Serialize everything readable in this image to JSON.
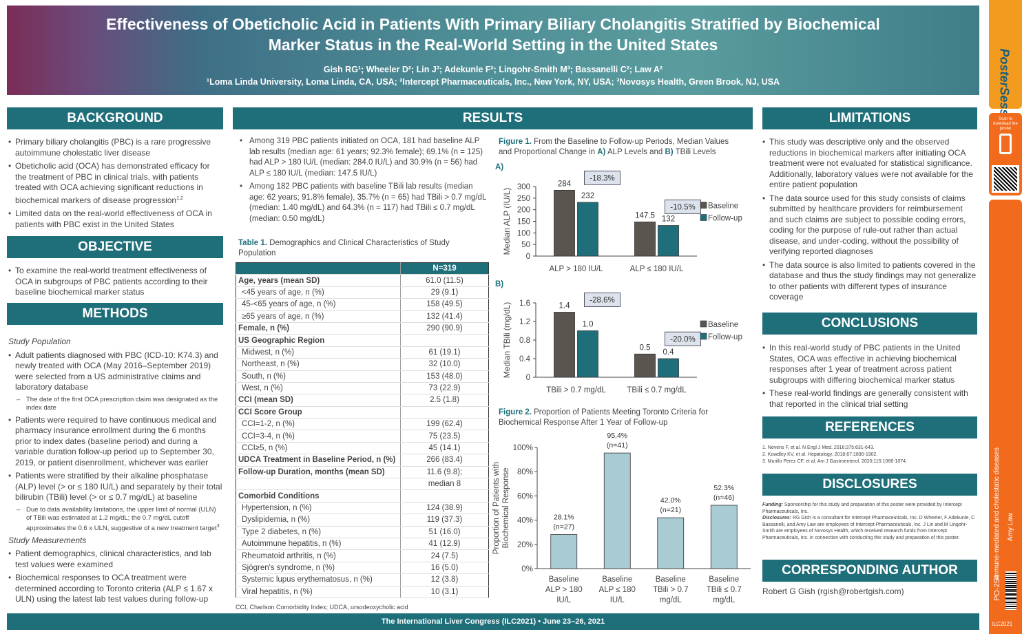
{
  "header": {
    "title_line1": "Effectiveness of Obeticholic Acid in Patients With Primary Biliary Cholangitis Stratified by Biochemical",
    "title_line2": "Marker Status in the Real-World Setting in the United States",
    "authors": "Gish RG¹; Wheeler D²; Lin J³; Adekunle F²; Lingohr-Smith M³; Bassanelli C²; Law A²",
    "affiliations": "¹Loma Linda University, Loma Linda, CA, USA; ²Intercept Pharmaceuticals, Inc., New York, NY, USA; ³Novosys Health, Green Brook, NJ, USA"
  },
  "sidebar": {
    "logo": "PosterSessionOnline",
    "scan_text": "Scan to download the poster",
    "topic": "Immune-mediated and cholestatic diseases",
    "author": "Amy Law",
    "poster_id": "PO-254",
    "congress": "ILC2021"
  },
  "background": {
    "title": "BACKGROUND",
    "items": [
      "Primary biliary cholangitis (PBC) is a rare progressive autoimmune cholestatic liver disease",
      "Obeticholic acid (OCA) has demonstrated efficacy for the treatment of PBC in clinical trials, with patients treated with OCA achieving significant reductions in biochemical markers of disease progression",
      "Limited data on the real-world effectiveness of OCA in patients with PBC exist in the United States"
    ],
    "ref_sup": "1,2"
  },
  "objective": {
    "title": "OBJECTIVE",
    "items": [
      "To examine the real-world treatment effectiveness of OCA in subgroups of PBC patients according to their baseline biochemical marker status"
    ]
  },
  "methods": {
    "title": "METHODS",
    "sub1": "Study Population",
    "p1": "Adult patients diagnosed with PBC (ICD-10: K74.3) and newly treated with OCA (May 2016–September 2019) were selected from a US administrative claims and laboratory database",
    "p1a": "The date of the first OCA prescription claim was designated as the index date",
    "p2": "Patients were required to have continuous medical and pharmacy insurance enrollment during the 6 months prior to index dates (baseline period) and during a variable duration follow-up period up to September 30, 2019, or patient disenrollment, whichever was earlier",
    "p3": "Patients were stratified by their alkaline phosphatase (ALP) level (> or ≤ 180 IU/L) and separately by their total bilirubin (TBili) level (> or ≤ 0.7 mg/dL) at baseline",
    "p3a": "Due to data availability limitations, the upper limit of normal (ULN) of TBili was estimated at 1.2 mg/dL; the 0.7 mg/dL cutoff approximates the 0.6 x ULN, suggestive of a new treatment target",
    "p3a_sup": "3",
    "sub2": "Study Measurements",
    "p4": "Patient demographics, clinical characteristics, and lab test values were examined",
    "p5": "Biochemical responses to OCA treatment were determined according to Toronto criteria (ALP ≤ 1.67 x ULN) using the latest lab test values during follow-up"
  },
  "results": {
    "title": "RESULTS",
    "items": [
      "Among 319 PBC patients initiated on OCA, 181 had baseline ALP lab results (median age: 61 years; 92.3% female); 69.1% (n = 125) had ALP > 180 IU/L (median: 284.0 IU/L) and 30.9% (n = 56) had ALP ≤ 180 IU/L (median: 147.5 IU/L)",
      "Among 182 PBC patients with baseline TBili lab results (median age: 62 years; 91.8% female), 35.7% (n = 65) had TBili > 0.7 mg/dL (median: 1.40 mg/dL) and 64.3% (n = 117) had TBili ≤ 0.7 mg/dL (median: 0.50 mg/dL)"
    ]
  },
  "table1": {
    "caption_label": "Table 1.",
    "caption": "Demographics and Clinical Characteristics of Study Population",
    "header": "N=319",
    "rows": [
      [
        "Age, years (mean SD)",
        "61.0 (11.5)",
        "bold"
      ],
      [
        "<45 years of age, n (%)",
        "29 (9.1)",
        "ind"
      ],
      [
        "45-<65 years of age, n (%)",
        "158 (49.5)",
        "ind"
      ],
      [
        "≥65 years of age, n (%)",
        "132 (41.4)",
        "ind"
      ],
      [
        "Female, n (%)",
        "290 (90.9)",
        "bold"
      ],
      [
        "US Geographic Region",
        "",
        "bold"
      ],
      [
        "Midwest, n (%)",
        "61 (19.1)",
        "ind"
      ],
      [
        "Northeast, n (%)",
        "32 (10.0)",
        "ind"
      ],
      [
        "South, n (%)",
        "153 (48.0)",
        "ind"
      ],
      [
        "West, n (%)",
        "73 (22.9)",
        "ind"
      ],
      [
        "CCI (mean SD)",
        "2.5 (1.8)",
        "bold"
      ],
      [
        "CCI Score Group",
        "",
        "bold"
      ],
      [
        "CCI=1-2, n (%)",
        "199 (62.4)",
        "ind"
      ],
      [
        "CCI=3-4, n (%)",
        "75 (23.5)",
        "ind"
      ],
      [
        "CCI≥5, n (%)",
        "45 (14.1)",
        "ind"
      ],
      [
        "UDCA Treatment in Baseline Period, n (%)",
        "266 (83.4)",
        "bold"
      ],
      [
        "Follow-up Duration, months (mean SD)",
        "11.6 (9.8);",
        "bold"
      ],
      [
        "",
        "median 8",
        "bold"
      ],
      [
        "Comorbid Conditions",
        "",
        "bold"
      ],
      [
        "Hypertension, n (%)",
        "124 (38.9)",
        "ind"
      ],
      [
        "Dyslipidemia, n (%)",
        "119 (37.3)",
        "ind"
      ],
      [
        "Type 2 diabetes, n (%)",
        "51 (16.0)",
        "ind"
      ],
      [
        "Autoimmune hepatitis, n (%)",
        "41 (12.9)",
        "ind"
      ],
      [
        "Rheumatoid arthritis, n (%)",
        "24 (7.5)",
        "ind"
      ],
      [
        "Sjögren's syndrome, n (%)",
        "16 (5.0)",
        "ind"
      ],
      [
        "Systemic lupus erythematosus, n (%)",
        "12 (3.8)",
        "ind"
      ],
      [
        "Viral hepatitis, n (%)",
        "10 (3.1)",
        "ind"
      ]
    ],
    "footnote": "CCI, Charlson Comorbidity Index; UDCA, ursodeoxycholic acid"
  },
  "figure1": {
    "caption_label": "Figure 1.",
    "caption_a": "From the Baseline to Follow-up Periods, Median Values and Proportional Change in",
    "caption_b": "A)",
    "caption_c": "ALP Levels and",
    "caption_d": "B)",
    "caption_e": "TBili Levels",
    "panel_a": "A)",
    "panel_b": "B)"
  },
  "figure2": {
    "caption_label": "Figure 2.",
    "caption": "Proportion of Patients Meeting Toronto Criteria for Biochemical Response After 1 Year of Follow-up"
  },
  "chart_data": [
    {
      "type": "bar",
      "ylabel": "Median ALP (IU/L)",
      "categories": [
        "ALP > 180 IU/L",
        "ALP ≤ 180 IU/L"
      ],
      "series": [
        {
          "name": "Baseline",
          "values": [
            284,
            147.5
          ],
          "labels": [
            "284",
            "147.5"
          ],
          "color": "#5b5550"
        },
        {
          "name": "Follow-up",
          "values": [
            232,
            132
          ],
          "labels": [
            "232",
            "132"
          ],
          "color": "#1f6f7a"
        }
      ],
      "changes": [
        "-18.3%",
        "-10.5%"
      ],
      "ylim": [
        0,
        300
      ],
      "yticks": [
        0,
        50,
        100,
        150,
        200,
        250,
        300
      ],
      "legend": "right"
    },
    {
      "type": "bar",
      "ylabel": "Median TBili (mg/dL)",
      "categories": [
        "TBili > 0.7 mg/dL",
        "TBili ≤ 0.7 mg/dL"
      ],
      "series": [
        {
          "name": "Baseline",
          "values": [
            1.4,
            0.5
          ],
          "labels": [
            "1.4",
            "0.5"
          ],
          "color": "#5b5550"
        },
        {
          "name": "Follow-up",
          "values": [
            1.0,
            0.4
          ],
          "labels": [
            "1.0",
            "0.4"
          ],
          "color": "#1f6f7a"
        }
      ],
      "changes": [
        "-28.6%",
        "-20.0%"
      ],
      "ylim": [
        0,
        1.6
      ],
      "yticks": [
        "0",
        "0.4",
        "0.8",
        "1.2",
        "1.6"
      ],
      "legend": "right"
    },
    {
      "type": "bar",
      "ylabel_line1": "Proportion of Patients with",
      "ylabel_line2": "Biochemical Response",
      "categories": [
        [
          "Baseline",
          "ALP > 180",
          "IU/L"
        ],
        [
          "Baseline",
          "ALP ≤ 180",
          "IU/L"
        ],
        [
          "Baseline",
          "TBili > 0.7",
          "mg/dL"
        ],
        [
          "Baseline",
          "TBili ≤ 0.7",
          "mg/dL"
        ]
      ],
      "values": [
        28.1,
        95.4,
        42.0,
        52.3
      ],
      "labels": [
        "28.1%",
        "95.4%",
        "42.0%",
        "52.3%"
      ],
      "ns": [
        "(n=27)",
        "(n=41)",
        "(n=21)",
        "(n=46)"
      ],
      "ylim": [
        0,
        100
      ],
      "yticks": [
        "0%",
        "20%",
        "40%",
        "60%",
        "80%",
        "100%"
      ],
      "color": "#a9cbd3"
    }
  ],
  "limitations": {
    "title": "LIMITATIONS",
    "items": [
      "This study was descriptive only and the observed reductions in biochemical markers after initiating OCA treatment were not evaluated for statistical significance. Additionally, laboratory values were not available for the entire patient population",
      "The data source used for this study consists of claims submitted by healthcare providers for reimbursement and such claims are subject to possible coding errors, coding for the purpose of rule-out rather than actual disease, and under-coding, without the possibility of verifying reported diagnoses",
      "The data source is also limited to patients covered in the database and thus the study findings may not generalize to other patients with different types of insurance coverage"
    ]
  },
  "conclusions": {
    "title": "CONCLUSIONS",
    "items": [
      "In this real-world study of PBC patients in the United States, OCA was effective in achieving biochemical responses after 1 year of treatment across patient subgroups with differing biochemical marker status",
      "These real-world findings are generally consistent with that reported in the clinical trial setting"
    ]
  },
  "references": {
    "title": "REFERENCES",
    "items": [
      "1. Nevens F, et al. N Engl J Med. 2016;375:631-643.",
      "2. Kowdley KV, et al. Hepatology. 2018;67:1890-1902.",
      "3. Murillo Perez CF, et al. Am J Gastroenterol. 2020;115:1066-1074."
    ]
  },
  "disclosures": {
    "title": "DISCLOSURES",
    "funding_label": "Funding:",
    "funding": "Sponsorship for this study and preparation of this poster were provided by Intercept Pharmaceuticals, Inc.",
    "disc_label": "Disclosures:",
    "text": "RG Gish is a consultant for Intercept Pharmaceuticals, Inc. D Wheeler, F Adekunle, C Bassanelli, and Amy Law are employees of Intercept Pharmaceuticals, Inc. J Lin and M Lingohr-Smith are employees of Novosys Health, which received research funds from Intercept Pharmaceuticals, Inc. in connection with conducting this study and preparation of this poster."
  },
  "corresponding": {
    "title": "CORRESPONDING AUTHOR",
    "text": "Robert G Gish (rgish@robertgish.com)"
  },
  "footer": "The International Liver Congress (ILC2021) • June 23–26, 2021"
}
